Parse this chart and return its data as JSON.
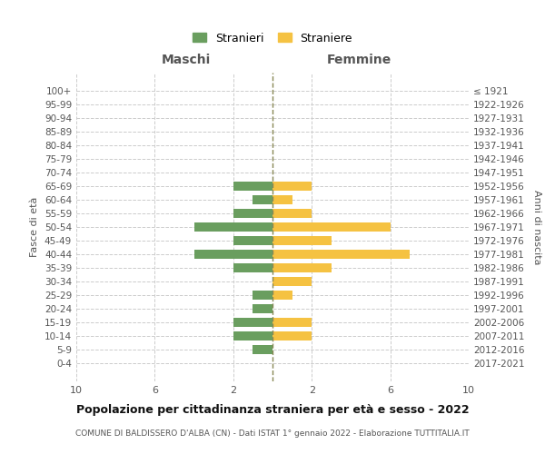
{
  "age_groups": [
    "100+",
    "95-99",
    "90-94",
    "85-89",
    "80-84",
    "75-79",
    "70-74",
    "65-69",
    "60-64",
    "55-59",
    "50-54",
    "45-49",
    "40-44",
    "35-39",
    "30-34",
    "25-29",
    "20-24",
    "15-19",
    "10-14",
    "5-9",
    "0-4"
  ],
  "birth_years": [
    "≤ 1921",
    "1922-1926",
    "1927-1931",
    "1932-1936",
    "1937-1941",
    "1942-1946",
    "1947-1951",
    "1952-1956",
    "1957-1961",
    "1962-1966",
    "1967-1971",
    "1972-1976",
    "1977-1981",
    "1982-1986",
    "1987-1991",
    "1992-1996",
    "1997-2001",
    "2002-2006",
    "2007-2011",
    "2012-2016",
    "2017-2021"
  ],
  "males": [
    0,
    0,
    0,
    0,
    0,
    0,
    0,
    2,
    1,
    2,
    4,
    2,
    4,
    2,
    0,
    1,
    1,
    2,
    2,
    1,
    0
  ],
  "females": [
    0,
    0,
    0,
    0,
    0,
    0,
    0,
    2,
    1,
    2,
    6,
    3,
    7,
    3,
    2,
    1,
    0,
    2,
    2,
    0,
    0
  ],
  "male_color": "#6a9e5f",
  "female_color": "#f5c242",
  "center_line_color": "#888855",
  "grid_color": "#cccccc",
  "bg_color": "#ffffff",
  "title": "Popolazione per cittadinanza straniera per età e sesso - 2022",
  "subtitle": "COMUNE DI BALDISSERO D'ALBA (CN) - Dati ISTAT 1° gennaio 2022 - Elaborazione TUTTITALIA.IT",
  "xlabel_left": "Maschi",
  "xlabel_right": "Femmine",
  "ylabel_left": "Fasce di età",
  "ylabel_right": "Anni di nascita",
  "legend_male": "Stranieri",
  "legend_female": "Straniere",
  "xlim": 10,
  "xtick_labels": [
    "10",
    "6",
    "2",
    "2",
    "6",
    "10"
  ],
  "xtick_vals": [
    -10,
    -6,
    -2,
    2,
    6,
    10
  ]
}
